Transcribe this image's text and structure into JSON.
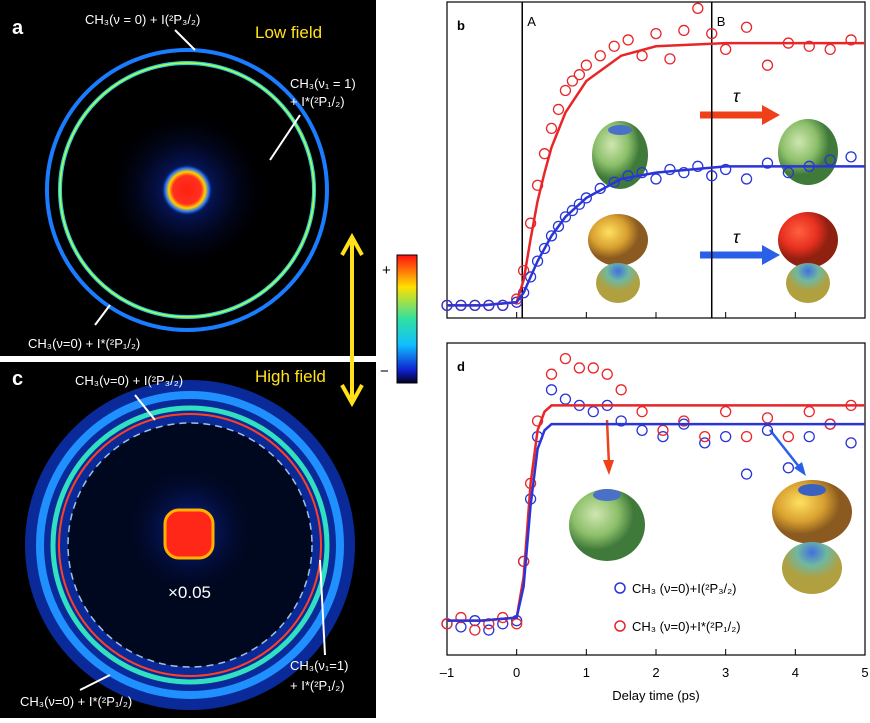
{
  "panels": {
    "a": {
      "label": "a",
      "field": "Low field",
      "annotations": [
        [
          "CH₃(ν = 0) + I(²P₃/₂)"
        ],
        [
          "CH₃(ν₁ = 1)",
          "+ I*(²P₁/₂)"
        ],
        [
          "CH₃(ν=0) + I*(²P₁/₂)"
        ]
      ]
    },
    "c": {
      "label": "c",
      "field": "High field",
      "scale": "×0.05",
      "annotations": [
        [
          "CH₃(ν=0) + I(²P₃/₂)"
        ],
        [
          "CH₃(ν₁=1)",
          "+ I*(²P₁/₂)"
        ],
        [
          "CH₃(ν=0) + I*(²P₁/₂)"
        ]
      ]
    }
  },
  "colorbar": {
    "max_label": "+",
    "min_label": "−"
  },
  "chart_data": [
    {
      "type": "scatter",
      "label": "b",
      "xlim": [
        -1,
        5
      ],
      "ylim": [
        0,
        1
      ],
      "xticks": [
        -1,
        0,
        1,
        2,
        3,
        4,
        5
      ],
      "show_tick_labels": false,
      "vlines": [
        {
          "label": "A",
          "x": 0.08
        },
        {
          "label": "B",
          "x": 2.8
        }
      ],
      "annotations": [
        "τ",
        "τ"
      ],
      "series": [
        {
          "style": "markers",
          "color": "#e8262a",
          "x": [
            -1,
            -0.8,
            -0.6,
            -0.4,
            -0.2,
            0,
            0.1,
            0.2,
            0.3,
            0.4,
            0.5,
            0.6,
            0.7,
            0.8,
            0.9,
            1.0,
            1.2,
            1.4,
            1.6,
            1.8,
            2.0,
            2.2,
            2.4,
            2.6,
            2.8,
            3.0,
            3.3,
            3.6,
            3.9,
            4.2,
            4.5,
            4.8
          ],
          "values": [
            0.04,
            0.04,
            0.04,
            0.04,
            0.04,
            0.06,
            0.15,
            0.3,
            0.42,
            0.52,
            0.6,
            0.66,
            0.72,
            0.75,
            0.77,
            0.8,
            0.83,
            0.86,
            0.88,
            0.83,
            0.9,
            0.82,
            0.91,
            0.98,
            0.9,
            0.85,
            0.92,
            0.8,
            0.87,
            0.86,
            0.85,
            0.88
          ]
        },
        {
          "style": "markers",
          "color": "#2a35d8",
          "x": [
            -1,
            -0.8,
            -0.6,
            -0.4,
            -0.2,
            0,
            0.1,
            0.2,
            0.3,
            0.4,
            0.5,
            0.6,
            0.7,
            0.8,
            0.9,
            1.0,
            1.2,
            1.4,
            1.6,
            1.8,
            2.0,
            2.2,
            2.4,
            2.6,
            2.8,
            3.0,
            3.3,
            3.6,
            3.9,
            4.2,
            4.5,
            4.8
          ],
          "values": [
            0.04,
            0.04,
            0.04,
            0.04,
            0.04,
            0.05,
            0.08,
            0.13,
            0.18,
            0.22,
            0.26,
            0.29,
            0.32,
            0.34,
            0.36,
            0.38,
            0.41,
            0.43,
            0.45,
            0.46,
            0.44,
            0.47,
            0.46,
            0.48,
            0.45,
            0.47,
            0.44,
            0.49,
            0.46,
            0.48,
            0.5,
            0.51
          ]
        },
        {
          "style": "line",
          "color": "#e8262a",
          "x": [
            -1,
            -0.5,
            0,
            0.1,
            0.2,
            0.3,
            0.4,
            0.5,
            0.7,
            1,
            1.5,
            2,
            3,
            4,
            5
          ],
          "values": [
            0.04,
            0.04,
            0.05,
            0.12,
            0.25,
            0.37,
            0.46,
            0.54,
            0.65,
            0.75,
            0.83,
            0.86,
            0.87,
            0.87,
            0.87
          ]
        },
        {
          "style": "line",
          "color": "#2a35d8",
          "x": [
            -1,
            -0.5,
            0,
            0.1,
            0.2,
            0.3,
            0.4,
            0.5,
            0.7,
            1,
            1.5,
            2,
            3,
            4,
            5
          ],
          "values": [
            0.04,
            0.04,
            0.05,
            0.08,
            0.13,
            0.18,
            0.22,
            0.26,
            0.32,
            0.38,
            0.44,
            0.46,
            0.48,
            0.48,
            0.48
          ]
        }
      ]
    },
    {
      "type": "scatter",
      "label": "d",
      "xlabel": "Delay time (ps)",
      "xlim": [
        -1,
        5
      ],
      "ylim": [
        0,
        1
      ],
      "show_tick_labels": true,
      "xticks": [
        {
          "value": -1,
          "label": "–1"
        },
        0,
        1,
        2,
        3,
        4,
        5
      ],
      "series": [
        {
          "style": "markers",
          "name": "CH₃ (ν=0)+I(²P₃/₂)",
          "color": "#2a35d8",
          "x": [
            -1,
            -0.8,
            -0.6,
            -0.4,
            -0.2,
            0,
            0.1,
            0.2,
            0.3,
            0.5,
            0.7,
            0.9,
            1.1,
            1.3,
            1.5,
            1.8,
            2.1,
            2.4,
            2.7,
            3.0,
            3.3,
            3.6,
            3.9,
            4.2,
            4.5,
            4.8
          ],
          "values": [
            0.1,
            0.09,
            0.11,
            0.08,
            0.1,
            0.11,
            0.3,
            0.5,
            0.7,
            0.85,
            0.82,
            0.8,
            0.78,
            0.8,
            0.75,
            0.72,
            0.7,
            0.74,
            0.68,
            0.7,
            0.58,
            0.72,
            0.6,
            0.7,
            0.74,
            0.68
          ]
        },
        {
          "style": "markers",
          "name": "CH₃ (ν=0)+I*(²P₁/₂)",
          "color": "#e8262a",
          "x": [
            -1,
            -0.8,
            -0.6,
            -0.4,
            -0.2,
            0,
            0.1,
            0.2,
            0.3,
            0.5,
            0.7,
            0.9,
            1.1,
            1.3,
            1.5,
            1.8,
            2.1,
            2.4,
            2.7,
            3.0,
            3.3,
            3.6,
            3.9,
            4.2,
            4.5,
            4.8
          ],
          "values": [
            0.1,
            0.12,
            0.08,
            0.1,
            0.12,
            0.1,
            0.3,
            0.55,
            0.75,
            0.9,
            0.95,
            0.92,
            0.92,
            0.9,
            0.85,
            0.78,
            0.72,
            0.75,
            0.7,
            0.78,
            0.7,
            0.76,
            0.7,
            0.78,
            0.74,
            0.8
          ]
        },
        {
          "style": "line",
          "color": "#e8262a",
          "x": [
            -1,
            -0.5,
            0,
            0.1,
            0.2,
            0.3,
            0.4,
            0.5,
            0.7,
            1,
            2,
            3,
            4,
            5
          ],
          "values": [
            0.11,
            0.11,
            0.12,
            0.25,
            0.55,
            0.72,
            0.78,
            0.8,
            0.8,
            0.8,
            0.8,
            0.8,
            0.8,
            0.8
          ]
        },
        {
          "style": "line",
          "color": "#2a35d8",
          "x": [
            -1,
            -0.5,
            0,
            0.1,
            0.2,
            0.3,
            0.4,
            0.5,
            0.7,
            1,
            2,
            3,
            4,
            5
          ],
          "values": [
            0.11,
            0.11,
            0.12,
            0.22,
            0.48,
            0.66,
            0.72,
            0.74,
            0.74,
            0.74,
            0.74,
            0.74,
            0.74,
            0.74
          ]
        }
      ]
    }
  ]
}
